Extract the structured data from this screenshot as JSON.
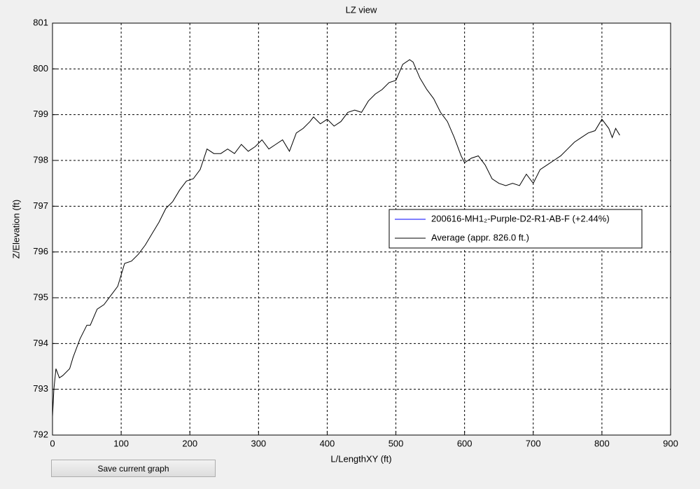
{
  "chart_data": {
    "type": "line",
    "title": "LZ view",
    "x_label": "L/LengthXY (ft)",
    "y_label": "Z/Elevation (ft)",
    "xlim": [
      0,
      900
    ],
    "xticks": [
      0,
      100,
      200,
      300,
      400,
      500,
      600,
      700,
      800,
      900
    ],
    "ylim": [
      792,
      801
    ],
    "yticks": [
      792,
      793,
      794,
      795,
      796,
      797,
      798,
      799,
      800,
      801
    ],
    "grid": true,
    "legend": "right",
    "series": [
      {
        "name": "200616-MH1₂-Purple-D2-R1-AB-F (+2.44%)",
        "color": "#0000ff",
        "x": [],
        "values": []
      },
      {
        "name": "Average (appr. 826.0 ft.)",
        "color": "#000000",
        "x": [
          0,
          2,
          5,
          10,
          15,
          25,
          30,
          40,
          50,
          55,
          65,
          75,
          85,
          95,
          105,
          115,
          125,
          135,
          145,
          155,
          165,
          175,
          185,
          195,
          205,
          215,
          225,
          235,
          245,
          255,
          265,
          275,
          285,
          295,
          305,
          315,
          325,
          335,
          345,
          355,
          365,
          375,
          380,
          390,
          400,
          410,
          420,
          430,
          440,
          450,
          460,
          470,
          480,
          490,
          500,
          510,
          520,
          525,
          535,
          545,
          555,
          565,
          575,
          585,
          595,
          600,
          610,
          620,
          630,
          640,
          650,
          660,
          670,
          680,
          690,
          700,
          710,
          720,
          730,
          740,
          750,
          760,
          770,
          780,
          790,
          800,
          810,
          815,
          820,
          826
        ],
        "values": [
          792.4,
          793.0,
          793.45,
          793.25,
          793.3,
          793.45,
          793.7,
          794.1,
          794.4,
          794.4,
          794.75,
          794.85,
          795.05,
          795.25,
          795.75,
          795.8,
          795.95,
          796.15,
          796.4,
          796.65,
          796.95,
          797.1,
          797.35,
          797.55,
          797.6,
          797.8,
          798.25,
          798.15,
          798.15,
          798.25,
          798.15,
          798.35,
          798.2,
          798.3,
          798.45,
          798.25,
          798.35,
          798.45,
          798.2,
          798.6,
          798.7,
          798.85,
          798.95,
          798.8,
          798.9,
          798.75,
          798.85,
          799.05,
          799.1,
          799.05,
          799.3,
          799.45,
          799.55,
          799.7,
          799.75,
          800.1,
          800.2,
          800.15,
          799.8,
          799.55,
          799.35,
          799.05,
          798.85,
          798.5,
          798.1,
          797.95,
          798.05,
          798.1,
          797.9,
          797.6,
          797.5,
          797.45,
          797.5,
          797.45,
          797.7,
          797.5,
          797.8,
          797.9,
          798.0,
          798.1,
          798.25,
          798.4,
          798.5,
          798.6,
          798.65,
          798.9,
          798.7,
          798.5,
          798.7,
          798.55
        ]
      }
    ]
  },
  "button": {
    "label": "Save current graph"
  }
}
